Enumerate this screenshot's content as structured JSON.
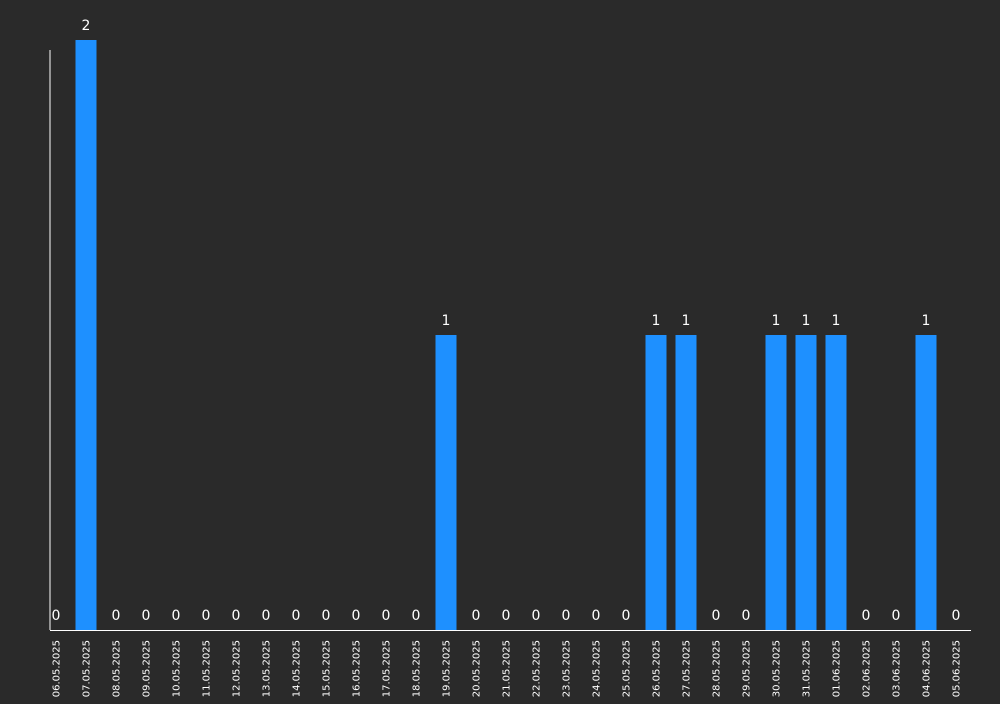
{
  "chart_data": {
    "type": "bar",
    "categories": [
      "06.05.2025",
      "07.05.2025",
      "08.05.2025",
      "09.05.2025",
      "10.05.2025",
      "11.05.2025",
      "12.05.2025",
      "13.05.2025",
      "14.05.2025",
      "15.05.2025",
      "16.05.2025",
      "17.05.2025",
      "18.05.2025",
      "19.05.2025",
      "20.05.2025",
      "21.05.2025",
      "22.05.2025",
      "23.05.2025",
      "24.05.2025",
      "25.05.2025",
      "26.05.2025",
      "27.05.2025",
      "28.05.2025",
      "29.05.2025",
      "30.05.2025",
      "31.05.2025",
      "01.06.2025",
      "02.06.2025",
      "03.06.2025",
      "04.06.2025",
      "05.06.2025"
    ],
    "values": [
      0,
      2,
      0,
      0,
      0,
      0,
      0,
      0,
      0,
      0,
      0,
      0,
      0,
      1,
      0,
      0,
      0,
      0,
      0,
      0,
      1,
      1,
      0,
      0,
      1,
      1,
      1,
      0,
      0,
      1,
      0
    ],
    "data_labels": [
      "0",
      "2",
      "0",
      "0",
      "0",
      "0",
      "0",
      "0",
      "0",
      "0",
      "0",
      "0",
      "0",
      "1",
      "0",
      "0",
      "0",
      "0",
      "0",
      "0",
      "1",
      "1",
      "0",
      "0",
      "1",
      "1",
      "1",
      "0",
      "0",
      "1",
      "0"
    ],
    "title": "",
    "xlabel": "",
    "ylabel": "",
    "ylim": [
      0,
      2
    ],
    "grid": false,
    "legend": "none",
    "colors": {
      "background": "#2a2a2a",
      "bar": "#1e90ff",
      "axis": "#ffffff",
      "text": "#ffffff"
    }
  }
}
